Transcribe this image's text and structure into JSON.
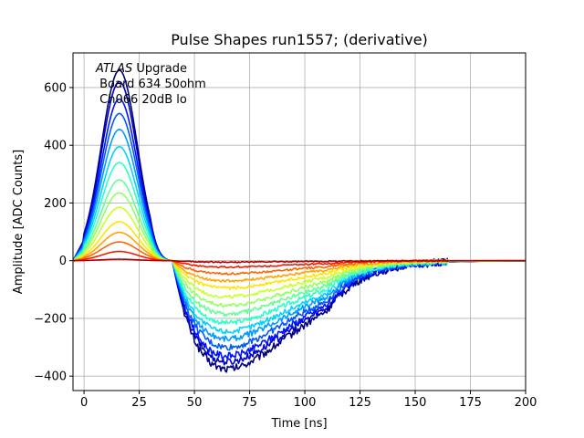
{
  "chart_data": {
    "type": "line",
    "title": "Pulse Shapes run1557; (derivative)",
    "xlabel": "Time [ns]",
    "ylabel": "Amplitude [ADC Counts]",
    "xlim": [
      -5,
      200
    ],
    "ylim": [
      -450,
      720
    ],
    "xticks": [
      0,
      25,
      50,
      75,
      100,
      125,
      150,
      175,
      200
    ],
    "yticks": [
      -400,
      -200,
      0,
      200,
      400,
      600
    ],
    "xtick_labels": [
      "0",
      "25",
      "50",
      "75",
      "100",
      "125",
      "150",
      "175",
      "200"
    ],
    "ytick_labels": [
      "−400",
      "−200",
      "0",
      "200",
      "400",
      "600"
    ],
    "grid": true,
    "annotation": {
      "italic": "ATLAS",
      "rest": " Upgrade",
      "line2": " Board 634 50ohm",
      "line3": " Ch066 20dB lo"
    },
    "series": [
      {
        "name": "s1",
        "color": "#00007f",
        "peak": 660,
        "trough": -375
      },
      {
        "name": "s2",
        "color": "#0000c8",
        "peak": 620,
        "trough": -350
      },
      {
        "name": "s3",
        "color": "#0014ff",
        "peak": 560,
        "trough": -330
      },
      {
        "name": "s4",
        "color": "#0058ff",
        "peak": 510,
        "trough": -300
      },
      {
        "name": "s5",
        "color": "#009cff",
        "peak": 455,
        "trough": -270
      },
      {
        "name": "s6",
        "color": "#00d4ff",
        "peak": 395,
        "trough": -245
      },
      {
        "name": "s7",
        "color": "#2dffca",
        "peak": 340,
        "trough": -215
      },
      {
        "name": "s8",
        "color": "#63ff94",
        "peak": 280,
        "trough": -185
      },
      {
        "name": "s9",
        "color": "#94ff63",
        "peak": 235,
        "trough": -155
      },
      {
        "name": "s10",
        "color": "#caff2d",
        "peak": 185,
        "trough": -125
      },
      {
        "name": "s11",
        "color": "#ffe500",
        "peak": 135,
        "trough": -95
      },
      {
        "name": "s12",
        "color": "#ffa400",
        "peak": 98,
        "trough": -70
      },
      {
        "name": "s13",
        "color": "#ff6300",
        "peak": 65,
        "trough": -45
      },
      {
        "name": "s14",
        "color": "#f11d00",
        "peak": 32,
        "trough": -22
      },
      {
        "name": "s15",
        "color": "#b20000",
        "peak": 5,
        "trough": -5
      }
    ]
  }
}
